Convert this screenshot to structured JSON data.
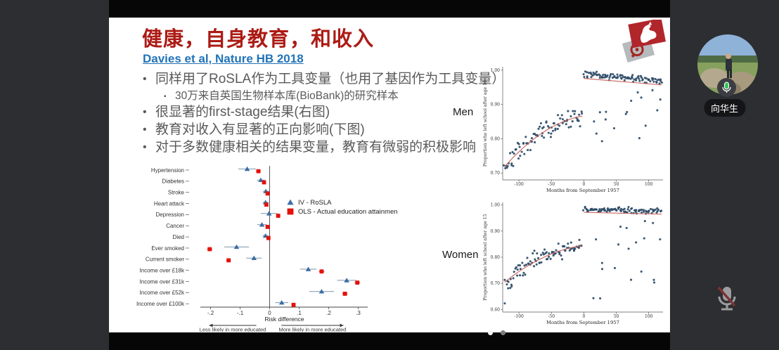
{
  "meeting": {
    "participant_name": "向华生",
    "participant_mic_state": "on",
    "self_mic_state": "muted",
    "page_dots": {
      "count": 2,
      "active_index": 0
    }
  },
  "slide": {
    "title": "健康，自身教育，和收入",
    "citation": "Davies et al, Nature HB 2018",
    "bullets": [
      {
        "level": 1,
        "text": "同样用了RoSLA作为工具变量（也用了基因作为工具变量）"
      },
      {
        "level": 2,
        "text": "30万来自英国生物样本库(BioBank)的研究样本"
      },
      {
        "level": 1,
        "text": "很显著的first-stage结果(右图)"
      },
      {
        "level": 1,
        "text": "教育对收入有显著的正向影响(下图)"
      },
      {
        "level": 1,
        "text": "对于多数健康相关的结果变量，教育有微弱的积极影响"
      }
    ],
    "logo": "university-crest"
  },
  "colors": {
    "title_red": "#ac1b15",
    "link_blue": "#2273b8",
    "body_gray": "#5a5a5a",
    "iv_blue": "#3a6ea5",
    "ols_red": "#e3120b",
    "scatter_dot": "#2c4a66",
    "fit_line": "#c9635c",
    "ui_dark": "#2c2e31",
    "mic_green": "#34c759"
  },
  "chart_data": [
    {
      "type": "scatter",
      "subtype": "forest-plot",
      "categories": [
        "Hypertension",
        "Diabetes",
        "Stroke",
        "Heart attack",
        "Depression",
        "Cancer",
        "Died",
        "Ever smoked",
        "Current smoker",
        "Income over £18k",
        "Income over £31k",
        "Income over £52k",
        "Income over £100k"
      ],
      "series": [
        {
          "name": "IV - RoSLA",
          "marker": "triangle",
          "color": "#3a6ea5",
          "ci_color": "#7e95a9",
          "values": [
            -0.076,
            -0.03,
            -0.013,
            -0.014,
            -0.002,
            -0.026,
            -0.014,
            -0.112,
            -0.053,
            0.131,
            0.261,
            0.176,
            0.041
          ],
          "ci": [
            0.03,
            0.013,
            0.01,
            0.01,
            0.028,
            0.016,
            0.01,
            0.042,
            0.026,
            0.028,
            0.032,
            0.042,
            0.022
          ]
        },
        {
          "name": "OLS - Actual education attainment",
          "marker": "square",
          "color": "#e3120b",
          "ci_color": "#e3120b",
          "values": [
            -0.038,
            -0.019,
            -0.007,
            -0.011,
            0.029,
            -0.007,
            -0.004,
            -0.203,
            -0.139,
            0.176,
            0.297,
            0.255,
            0.081
          ],
          "ci": [
            0.008,
            0.005,
            0.003,
            0.003,
            0.007,
            0.005,
            0.003,
            0.009,
            0.008,
            0.009,
            0.009,
            0.009,
            0.007
          ]
        }
      ],
      "xlabel": "Risk difference",
      "xticks": [
        -0.2,
        -0.1,
        0,
        0.1,
        0.2,
        0.3
      ],
      "xtick_labels": [
        "-.2",
        "-.1",
        "0",
        ".1",
        ".2",
        ".3"
      ],
      "xlim": [
        -0.27,
        0.34
      ],
      "zero_line": true,
      "legend_position": "upper-right-inside",
      "annotations": [
        {
          "text": "Less likely in more educated",
          "side": "left"
        },
        {
          "text": "More likely in more educated",
          "side": "right"
        }
      ]
    },
    {
      "type": "scatter",
      "subtype": "regression-discontinuity",
      "panel_label": "Men",
      "xlabel": "Months from September 1957",
      "ylabel": "Proportion who left school after age 15",
      "xticks": [
        -100,
        -50,
        0,
        50,
        100
      ],
      "yticks": [
        0.7,
        0.8,
        0.9,
        1.0
      ],
      "ytick_labels": [
        "0.70",
        "0.80",
        "0.90",
        "1.00"
      ],
      "xlim": [
        -125,
        122
      ],
      "ylim": [
        0.68,
        1.01
      ],
      "cutoff": 0,
      "pre_trend": {
        "c0": 0.867,
        "c1": 0.0003,
        "c2": -7.5e-06,
        "n": 88,
        "sd": 0.02
      },
      "post_trend": {
        "y_at_cutoff": 0.976,
        "y_at_end": 0.957,
        "n": 108,
        "sd": 0.009,
        "outliers": 17,
        "outlier_ylo": 0.785,
        "outlier_yhi": 0.955
      },
      "jump_at_cutoff": 0.11,
      "seed": 7,
      "dot_color": "#2c4a66",
      "line_color": "#c9635c"
    },
    {
      "type": "scatter",
      "subtype": "regression-discontinuity",
      "panel_label": "Women",
      "xlabel": "Months from September 1957",
      "ylabel": "Proportion who left school after age 15",
      "xticks": [
        -100,
        -50,
        0,
        50,
        100
      ],
      "yticks": [
        0.6,
        0.7,
        0.8,
        0.9,
        1.0
      ],
      "ytick_labels": [
        "0.60",
        "0.70",
        "0.80",
        "0.90",
        "1.00"
      ],
      "xlim": [
        -125,
        122
      ],
      "ylim": [
        0.59,
        1.01
      ],
      "cutoff": 0,
      "pre_trend": {
        "c0": 0.845,
        "c1": 0.0003,
        "c2": -7e-06,
        "n": 90,
        "sd": 0.022
      },
      "post_trend": {
        "y_at_cutoff": 0.972,
        "y_at_end": 0.965,
        "n": 110,
        "sd": 0.009,
        "outliers": 19,
        "outlier_ylo": 0.64,
        "outlier_yhi": 0.95
      },
      "jump_at_cutoff": 0.13,
      "seed": 13,
      "dot_color": "#2c4a66",
      "line_color": "#c9635c"
    }
  ]
}
